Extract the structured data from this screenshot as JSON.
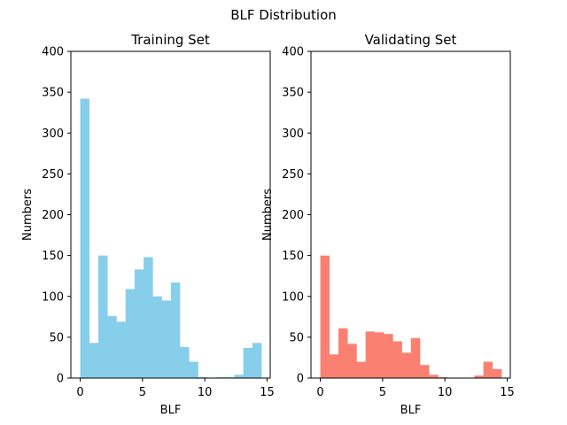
{
  "figure": {
    "suptitle": "BLF Distribution"
  },
  "chart_data": [
    {
      "type": "bar",
      "title": "Training Set",
      "xlabel": "BLF",
      "ylabel": "Numbers",
      "color": "#87ceeb",
      "xlim": [
        -0.75,
        15.25
      ],
      "ylim": [
        0,
        400
      ],
      "xticks": [
        0,
        5,
        10,
        15
      ],
      "yticks": [
        0,
        50,
        100,
        150,
        200,
        250,
        300,
        350,
        400
      ],
      "bin_width": 0.727,
      "bin_starts": [
        0,
        0.727,
        1.455,
        2.182,
        2.909,
        3.636,
        4.364,
        5.091,
        5.818,
        6.545,
        7.273,
        8,
        8.727,
        9.455,
        10.182,
        10.909,
        11.636,
        12.364,
        13.091,
        13.818
      ],
      "values": [
        342,
        43,
        150,
        76,
        69,
        109,
        133,
        148,
        100,
        95,
        117,
        38,
        20,
        1,
        0,
        1,
        1,
        4,
        37,
        43
      ],
      "grid": false
    },
    {
      "type": "bar",
      "title": "Validating Set",
      "xlabel": "BLF",
      "ylabel": "Numbers",
      "color": "#fa8072",
      "xlim": [
        -0.75,
        15.25
      ],
      "ylim": [
        0,
        400
      ],
      "xticks": [
        0,
        5,
        10,
        15
      ],
      "yticks": [
        0,
        50,
        100,
        150,
        200,
        250,
        300,
        350,
        400
      ],
      "bin_width": 0.727,
      "bin_starts": [
        0,
        0.727,
        1.455,
        2.182,
        2.909,
        3.636,
        4.364,
        5.091,
        5.818,
        6.545,
        7.273,
        8,
        8.727,
        9.455,
        10.182,
        10.909,
        11.636,
        12.364,
        13.091,
        13.818
      ],
      "values": [
        150,
        29,
        61,
        42,
        20,
        57,
        56,
        54,
        45,
        31,
        49,
        16,
        4,
        1,
        0,
        0,
        0,
        3,
        20,
        11
      ],
      "grid": false
    }
  ]
}
